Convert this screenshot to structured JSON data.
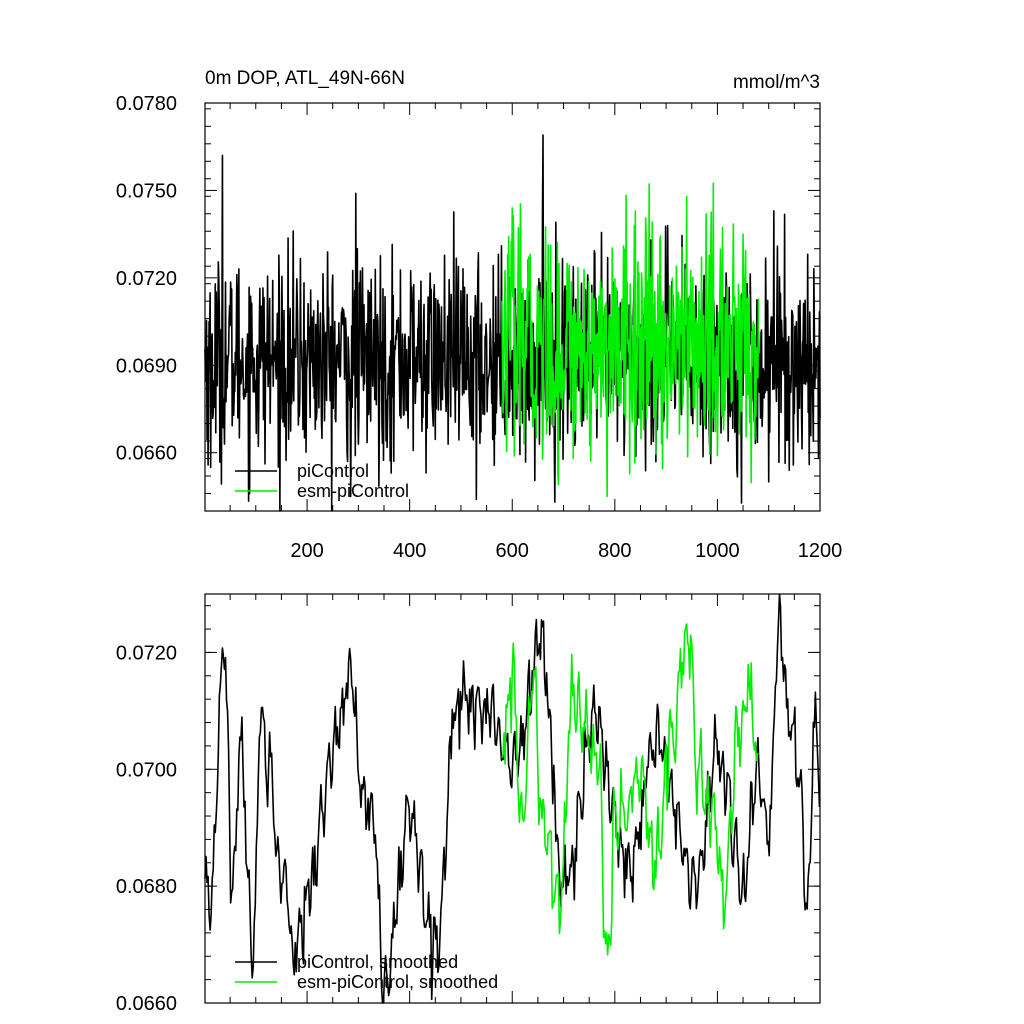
{
  "colors": {
    "piControl": "#000000",
    "esm_piControl": "#00ee00",
    "frame": "#000000"
  },
  "chart_data": [
    {
      "type": "line",
      "title": "0m DOP, ATL_49N-66N",
      "units": "mmol/m^3",
      "xlim": [
        1,
        1200
      ],
      "ylim": [
        0.064,
        0.078
      ],
      "x_ticks": [
        200,
        400,
        600,
        800,
        1000,
        1200
      ],
      "x_tick_labels": [
        "200",
        "400",
        "600",
        "800",
        "1000",
        "1200"
      ],
      "y_ticks": [
        0.066,
        0.069,
        0.072,
        0.075,
        0.078
      ],
      "y_tick_labels": [
        "0.0660",
        "0.0690",
        "0.0720",
        "0.0750",
        "0.0780"
      ],
      "legend": {
        "placement": "lower-left",
        "entries": [
          "piControl",
          "esm-piControl"
        ]
      },
      "series": [
        {
          "name": "piControl",
          "color": "#000000",
          "x_range": [
            1,
            1200
          ],
          "mean": 0.0692,
          "sd": 0.0017,
          "noise": "monthly",
          "peaks": [
            [
              35,
              0.0762
            ],
            [
              660,
              0.0769
            ],
            [
              295,
              0.0749
            ],
            [
              1110,
              0.0743
            ]
          ],
          "troughs": [
            [
              12,
              0.0655
            ],
            [
              530,
              0.0644
            ],
            [
              285,
              0.0645
            ],
            [
              1140,
              0.0654
            ]
          ]
        },
        {
          "name": "esm-piControl",
          "color": "#00ee00",
          "x_range": [
            580,
            1080
          ],
          "mean": 0.0697,
          "sd": 0.0019,
          "noise": "monthly",
          "peaks": [
            [
              600,
              0.0744
            ],
            [
              940,
              0.0748
            ],
            [
              840,
              0.0743
            ]
          ],
          "troughs": [
            [
              785,
              0.0645
            ],
            [
              690,
              0.0649
            ],
            [
              1000,
              0.0659
            ]
          ]
        }
      ]
    },
    {
      "type": "line",
      "xlim": [
        1,
        1200
      ],
      "ylim": [
        0.066,
        0.073
      ],
      "x_ticks": [
        200,
        400,
        600,
        800,
        1000,
        1200
      ],
      "y_ticks": [
        0.066,
        0.068,
        0.07,
        0.072
      ],
      "y_tick_labels": [
        "0.0660",
        "0.0680",
        "0.0700",
        "0.0720"
      ],
      "legend": {
        "placement": "lower-left",
        "entries": [
          "piControl, smoothed",
          "esm-piControl, smoothed"
        ]
      },
      "series": [
        {
          "name": "piControl, smoothed",
          "color": "#000000",
          "x_range": [
            1,
            1200
          ],
          "mean": 0.0694,
          "sd": 0.0009,
          "noise": "smoothed",
          "anchors": [
            [
              1,
              0.0678
            ],
            [
              10,
              0.0675
            ],
            [
              38,
              0.0722
            ],
            [
              55,
              0.0678
            ],
            [
              70,
              0.0705
            ],
            [
              95,
              0.0668
            ],
            [
              110,
              0.0712
            ],
            [
              120,
              0.0702
            ],
            [
              155,
              0.0683
            ],
            [
              170,
              0.067
            ],
            [
              290,
              0.0715
            ],
            [
              300,
              0.0698
            ],
            [
              330,
              0.069
            ],
            [
              350,
              0.0662
            ],
            [
              400,
              0.0692
            ],
            [
              455,
              0.067
            ],
            [
              490,
              0.0712
            ],
            [
              560,
              0.071
            ],
            [
              600,
              0.07
            ],
            [
              655,
              0.0722
            ],
            [
              700,
              0.068
            ],
            [
              760,
              0.0708
            ],
            [
              830,
              0.0682
            ],
            [
              880,
              0.0705
            ],
            [
              960,
              0.068
            ],
            [
              1000,
              0.0702
            ],
            [
              1050,
              0.068
            ],
            [
              1080,
              0.07
            ],
            [
              1100,
              0.069
            ],
            [
              1120,
              0.0725
            ],
            [
              1140,
              0.0708
            ],
            [
              1160,
              0.07
            ],
            [
              1175,
              0.0676
            ],
            [
              1190,
              0.071
            ],
            [
              1200,
              0.0695
            ]
          ]
        },
        {
          "name": "esm-piControl, smoothed",
          "color": "#00ee00",
          "x_range": [
            580,
            1080
          ],
          "mean": 0.0697,
          "sd": 0.001,
          "noise": "smoothed",
          "anchors": [
            [
              580,
              0.0702
            ],
            [
              600,
              0.0716
            ],
            [
              620,
              0.069
            ],
            [
              640,
              0.0715
            ],
            [
              660,
              0.069
            ],
            [
              690,
              0.0678
            ],
            [
              720,
              0.0712
            ],
            [
              770,
              0.07
            ],
            [
              785,
              0.0665
            ],
            [
              800,
              0.069
            ],
            [
              850,
              0.07
            ],
            [
              880,
              0.0685
            ],
            [
              910,
              0.0705
            ],
            [
              945,
              0.0723
            ],
            [
              960,
              0.07
            ],
            [
              1000,
              0.069
            ],
            [
              1010,
              0.0675
            ],
            [
              1040,
              0.0705
            ],
            [
              1060,
              0.0715
            ],
            [
              1080,
              0.07
            ]
          ]
        }
      ]
    }
  ]
}
